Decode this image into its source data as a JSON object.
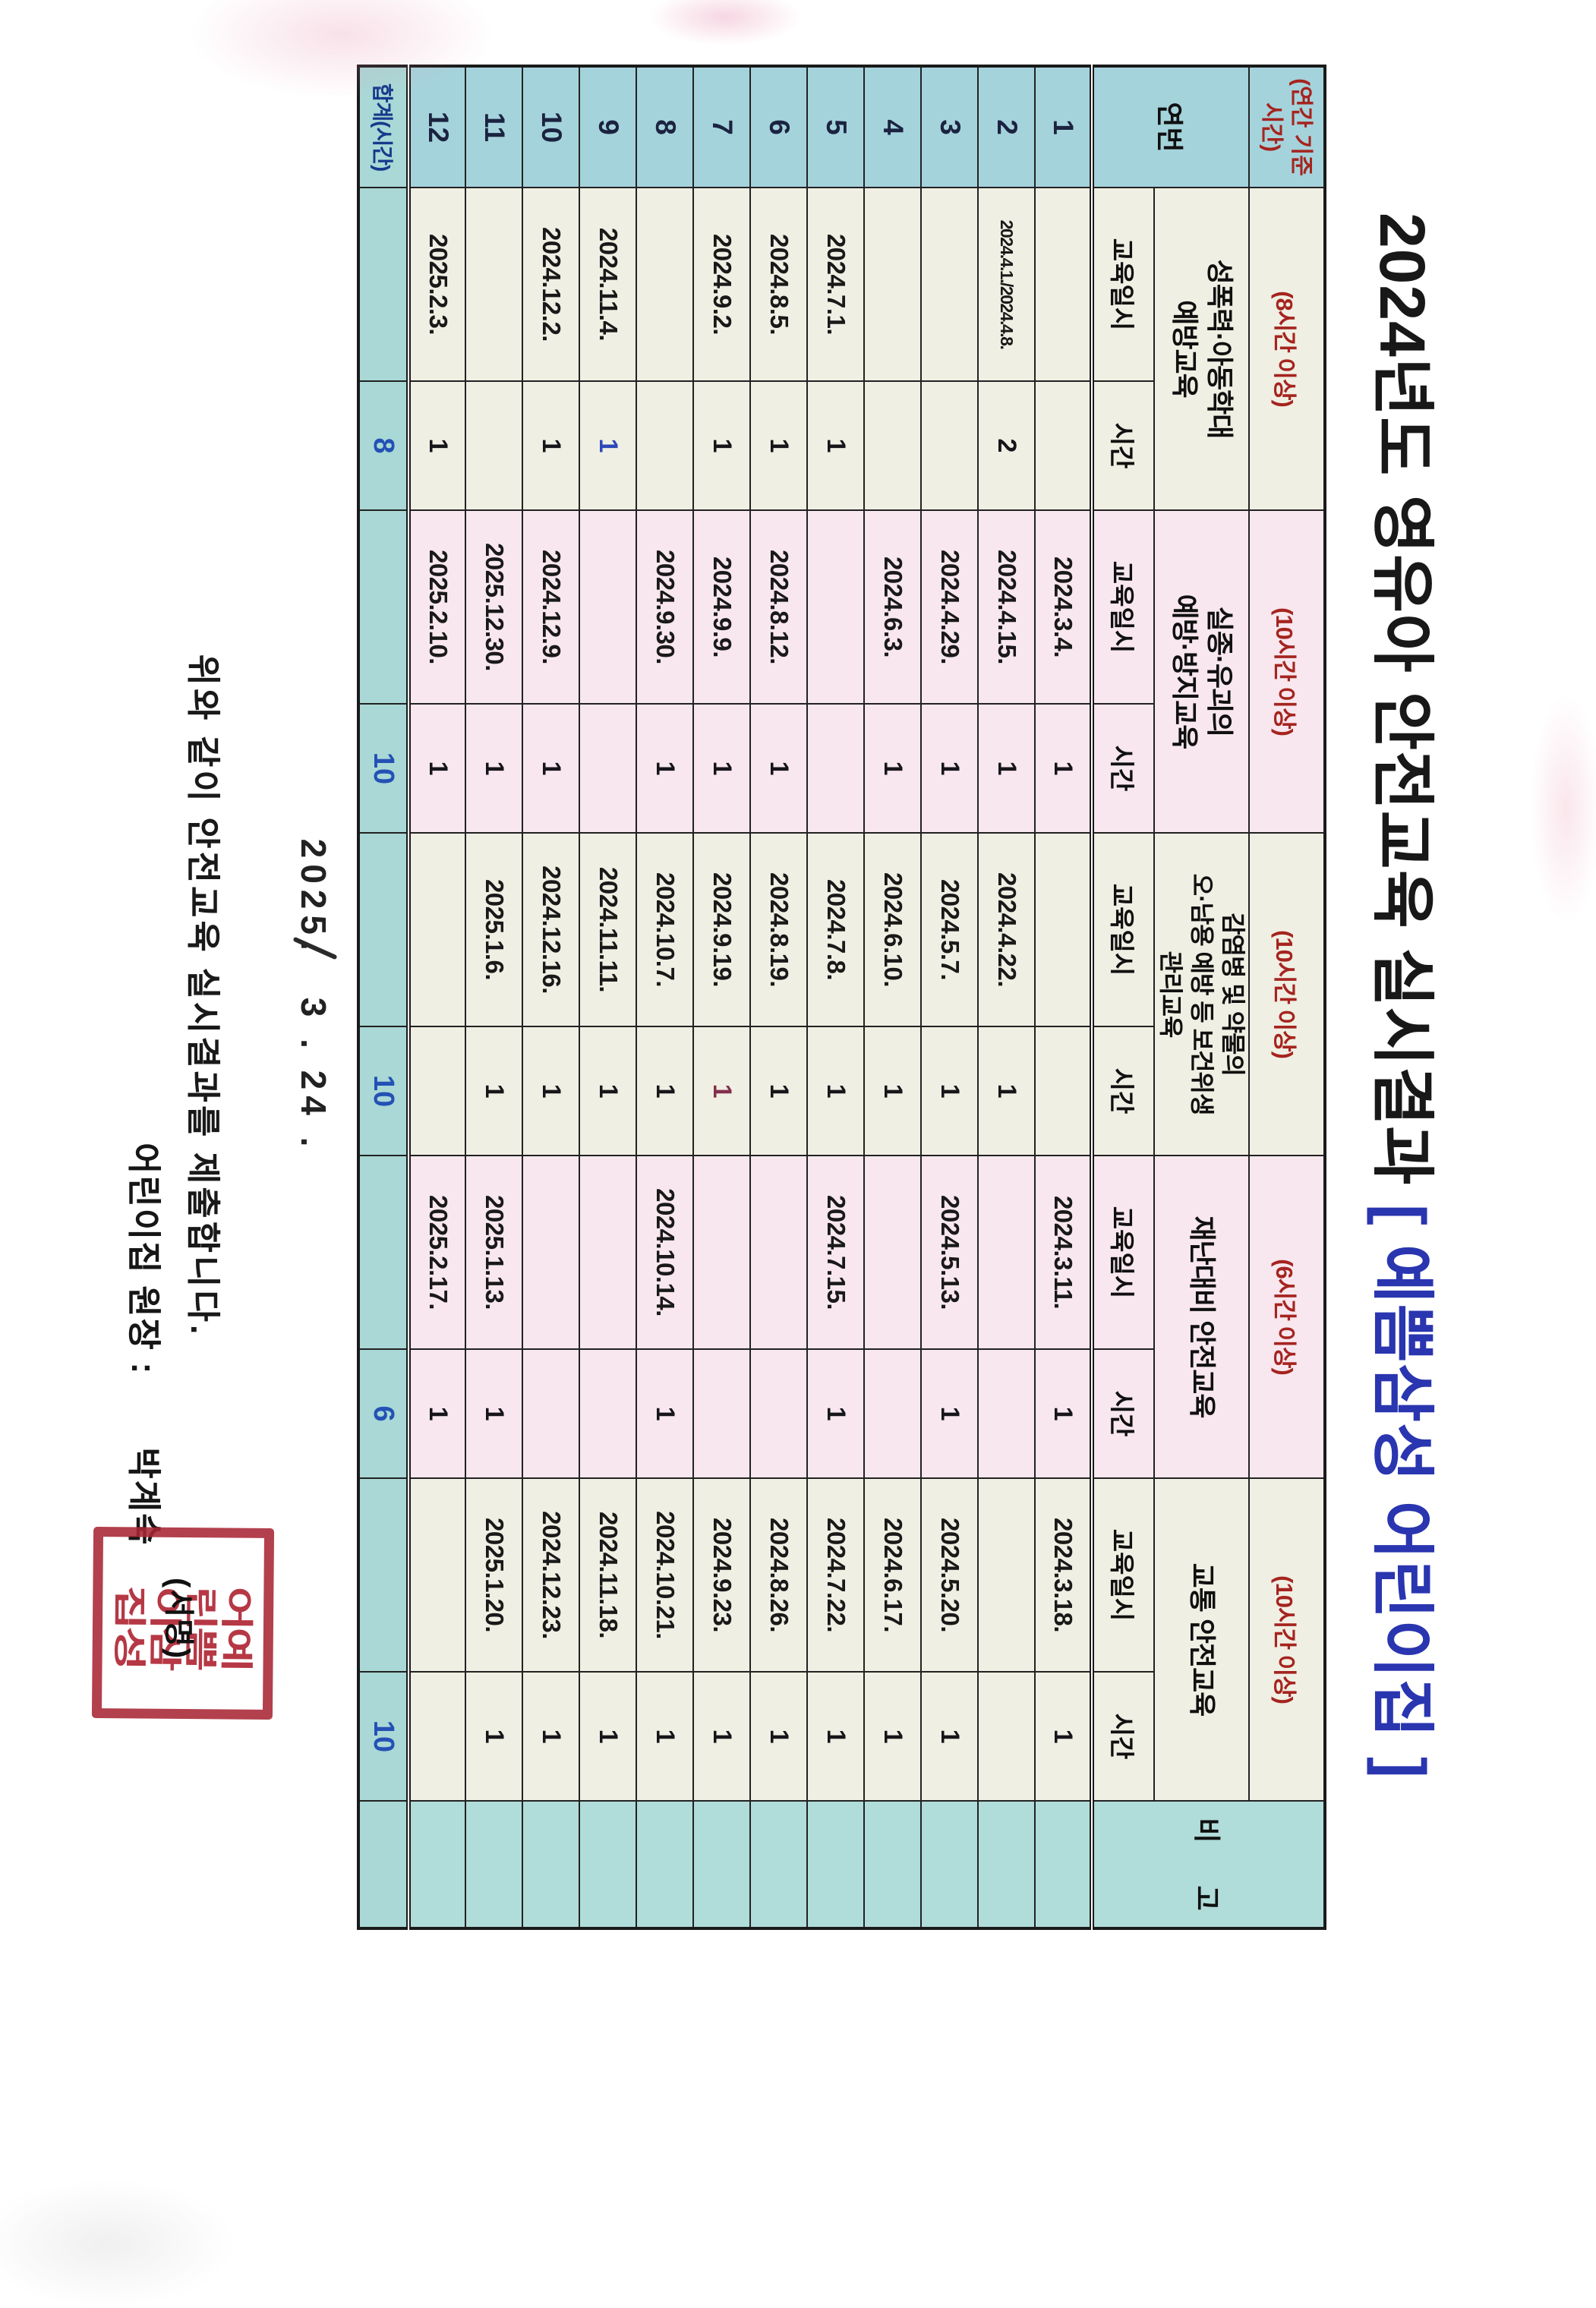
{
  "title": {
    "main": "2024년도 영유아 안전교육 실시결과 ",
    "org": "[ 예쁨삼성 어린이집 ]"
  },
  "table": {
    "corner_note": "(연간 기준\n시간)",
    "no_label": "연번",
    "date_label": "교육일시",
    "hour_label": "시간",
    "remark_label": "비 고",
    "categories": [
      {
        "name": "성폭력·아동학대\n예방교육",
        "note": "(8시간 이상)"
      },
      {
        "name": "실종·유괴의\n예방·방지교육",
        "note": "(10시간 이상)"
      },
      {
        "name": "감염병 및 약물의\n오·남용 예방 등 보건위생\n관리교육",
        "note": "(10시간 이상)"
      },
      {
        "name": "재난대비 안전교육",
        "note": "(6시간 이상)"
      },
      {
        "name": "교통 안전교육",
        "note": "(10시간 이상)"
      }
    ],
    "rows": [
      [
        "1",
        "",
        "",
        "2024.3.4.",
        "1",
        "",
        "",
        "2024.3.11.",
        "1",
        "2024.3.18.",
        "1",
        ""
      ],
      [
        "2",
        "2024.4.1./2024.4.8.",
        "2",
        "2024.4.15.",
        "1",
        "2024.4.22.",
        "1",
        "",
        "",
        "",
        "",
        ""
      ],
      [
        "3",
        "",
        "",
        "2024.4.29.",
        "1",
        "2024.5.7.",
        "1",
        "2024.5.13.",
        "1",
        "2024.5.20.",
        "1",
        ""
      ],
      [
        "4",
        "",
        "",
        "2024.6.3.",
        "1",
        "2024.6.10.",
        "1",
        "",
        "",
        "2024.6.17.",
        "1",
        ""
      ],
      [
        "5",
        "2024.7.1.",
        "1",
        "",
        "",
        "2024.7.8.",
        "1",
        "2024.7.15.",
        "1",
        "2024.7.22.",
        "1",
        ""
      ],
      [
        "6",
        "2024.8.5.",
        "1",
        "2024.8.12.",
        "1",
        "2024.8.19.",
        "1",
        "",
        "",
        "2024.8.26.",
        "1",
        ""
      ],
      [
        "7",
        "2024.9.2.",
        "1",
        "2024.9.9.",
        "1",
        "2024.9.19.",
        "1",
        "",
        "",
        "2024.9.23.",
        "1",
        ""
      ],
      [
        "8",
        "",
        "",
        "2024.9.30.",
        "1",
        "2024.10.7.",
        "1",
        "2024.10.14.",
        "1",
        "2024.10.21.",
        "1",
        ""
      ],
      [
        "9",
        "2024.11.4.",
        "1",
        "",
        "",
        "2024.11.11.",
        "1",
        "",
        "",
        "2024.11.18.",
        "1",
        ""
      ],
      [
        "10",
        "2024.12.2.",
        "1",
        "2024.12.9.",
        "1",
        "2024.12.16.",
        "1",
        "",
        "",
        "2024.12.23.",
        "1",
        ""
      ],
      [
        "11",
        "",
        "",
        "2025.12.30.",
        "1",
        "2025.1.6.",
        "1",
        "2025.1.13.",
        "1",
        "2025.1.20.",
        "1",
        ""
      ],
      [
        "12",
        "2025.2.3.",
        "1",
        "2025.2.10.",
        "1",
        "",
        "",
        "2025.2.17.",
        "1",
        "",
        "",
        ""
      ]
    ],
    "special_hours": [
      {
        "row": 9,
        "cell": 2,
        "color": "#2b49b8"
      },
      {
        "row": 7,
        "cell": 6,
        "color": "#83304e"
      }
    ],
    "total": {
      "label": "합계(시간)",
      "cells": [
        "",
        "8",
        "",
        "10",
        "",
        "10",
        "",
        "6",
        "",
        "10",
        ""
      ]
    }
  },
  "footer": {
    "date_year": "2025.",
    "date_rest": "3 .  24 .",
    "submit_line": "위와 같이 안전교육 실시결과를 제출합니다.",
    "signer_label": "어린이집 원장 :",
    "signer_name": "박계숙",
    "signature_note": "(서명)",
    "stamp_cols": [
      "예쁨삼성",
      "어린이집"
    ]
  },
  "colors": {
    "band_blue": "#a5d3dc",
    "band_teal": "#b0dcda",
    "cream": "#f0efe3",
    "pink": "#f8e7ee",
    "note_red": "#a5241f",
    "total_blue": "#2351b5",
    "title_blue": "#2a35b0",
    "seal_red": "#b02836"
  }
}
